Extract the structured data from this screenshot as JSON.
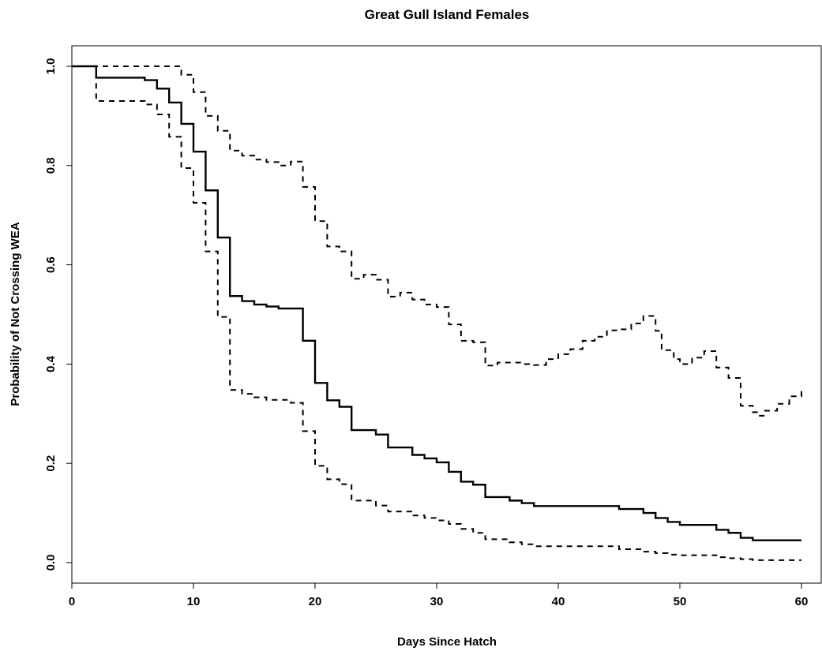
{
  "chart_data": {
    "type": "line",
    "title": "Great Gull Island Females",
    "xlabel": "Days Since Hatch",
    "ylabel": "Probability of Not Crossing WEA",
    "xlim": [
      0,
      60
    ],
    "ylim": [
      0.0,
      1.0
    ],
    "x_ticks": [
      "0",
      "10",
      "20",
      "30",
      "40",
      "50",
      "60"
    ],
    "y_ticks": [
      "0.0",
      "0.2",
      "0.4",
      "0.6",
      "0.8",
      "1.0"
    ],
    "grid": false,
    "legend": "none",
    "step": true,
    "series": [
      {
        "style": "solid",
        "points": [
          [
            0,
            1.0
          ],
          [
            2,
            0.977
          ],
          [
            6,
            0.972
          ],
          [
            7,
            0.955
          ],
          [
            8,
            0.927
          ],
          [
            9,
            0.884
          ],
          [
            10,
            0.828
          ],
          [
            11,
            0.75
          ],
          [
            12,
            0.655
          ],
          [
            13,
            0.537
          ],
          [
            14,
            0.527
          ],
          [
            15,
            0.52
          ],
          [
            16,
            0.516
          ],
          [
            17,
            0.512
          ],
          [
            19,
            0.447
          ],
          [
            20,
            0.362
          ],
          [
            21,
            0.327
          ],
          [
            22,
            0.314
          ],
          [
            23,
            0.267
          ],
          [
            25,
            0.258
          ],
          [
            26,
            0.232
          ],
          [
            28,
            0.217
          ],
          [
            29,
            0.21
          ],
          [
            30,
            0.202
          ],
          [
            31,
            0.183
          ],
          [
            32,
            0.163
          ],
          [
            33,
            0.157
          ],
          [
            34,
            0.132
          ],
          [
            36,
            0.125
          ],
          [
            37,
            0.12
          ],
          [
            38,
            0.114
          ],
          [
            45,
            0.108
          ],
          [
            47,
            0.1
          ],
          [
            48,
            0.09
          ],
          [
            49,
            0.082
          ],
          [
            50,
            0.076
          ],
          [
            53,
            0.066
          ],
          [
            54,
            0.06
          ],
          [
            55,
            0.05
          ],
          [
            56,
            0.045
          ],
          [
            60,
            0.045
          ]
        ]
      },
      {
        "style": "dashed",
        "points": [
          [
            0,
            1.0
          ],
          [
            2,
            0.93
          ],
          [
            6,
            0.923
          ],
          [
            7,
            0.903
          ],
          [
            8,
            0.858
          ],
          [
            9,
            0.795
          ],
          [
            10,
            0.725
          ],
          [
            11,
            0.627
          ],
          [
            12,
            0.495
          ],
          [
            13,
            0.348
          ],
          [
            14,
            0.34
          ],
          [
            15,
            0.333
          ],
          [
            16,
            0.328
          ],
          [
            18,
            0.322
          ],
          [
            19,
            0.265
          ],
          [
            20,
            0.195
          ],
          [
            21,
            0.168
          ],
          [
            22,
            0.158
          ],
          [
            23,
            0.125
          ],
          [
            25,
            0.115
          ],
          [
            26,
            0.103
          ],
          [
            28,
            0.095
          ],
          [
            29,
            0.09
          ],
          [
            30,
            0.085
          ],
          [
            31,
            0.078
          ],
          [
            32,
            0.068
          ],
          [
            33,
            0.06
          ],
          [
            34,
            0.047
          ],
          [
            36,
            0.041
          ],
          [
            37,
            0.037
          ],
          [
            38,
            0.033
          ],
          [
            45,
            0.027
          ],
          [
            47,
            0.022
          ],
          [
            48,
            0.019
          ],
          [
            49,
            0.016
          ],
          [
            50,
            0.015
          ],
          [
            53,
            0.011
          ],
          [
            54,
            0.009
          ],
          [
            55,
            0.007
          ],
          [
            56,
            0.005
          ],
          [
            60,
            0.005
          ]
        ]
      },
      {
        "style": "dashed",
        "points": [
          [
            0,
            1.0
          ],
          [
            2,
            1.0
          ],
          [
            9,
            0.983
          ],
          [
            10,
            0.948
          ],
          [
            11,
            0.9
          ],
          [
            12,
            0.87
          ],
          [
            13,
            0.83
          ],
          [
            14,
            0.82
          ],
          [
            15,
            0.812
          ],
          [
            16,
            0.807
          ],
          [
            17,
            0.8
          ],
          [
            18,
            0.808
          ],
          [
            19,
            0.757
          ],
          [
            20,
            0.688
          ],
          [
            21,
            0.637
          ],
          [
            22,
            0.627
          ],
          [
            23,
            0.572
          ],
          [
            24,
            0.58
          ],
          [
            25,
            0.57
          ],
          [
            26,
            0.536
          ],
          [
            27,
            0.544
          ],
          [
            28,
            0.53
          ],
          [
            29,
            0.52
          ],
          [
            30,
            0.515
          ],
          [
            31,
            0.48
          ],
          [
            32,
            0.447
          ],
          [
            33,
            0.444
          ],
          [
            34,
            0.397
          ],
          [
            35,
            0.403
          ],
          [
            36,
            0.403
          ],
          [
            37,
            0.4
          ],
          [
            38,
            0.398
          ],
          [
            39,
            0.41
          ],
          [
            40,
            0.42
          ],
          [
            41,
            0.43
          ],
          [
            42,
            0.447
          ],
          [
            43,
            0.455
          ],
          [
            44,
            0.468
          ],
          [
            45,
            0.47
          ],
          [
            46,
            0.482
          ],
          [
            47,
            0.497
          ],
          [
            48,
            0.467
          ],
          [
            48.5,
            0.428
          ],
          [
            49,
            0.428
          ],
          [
            49.5,
            0.41
          ],
          [
            50,
            0.4
          ],
          [
            51,
            0.413
          ],
          [
            52,
            0.426
          ],
          [
            53,
            0.393
          ],
          [
            54,
            0.372
          ],
          [
            55,
            0.316
          ],
          [
            56,
            0.303
          ],
          [
            56.5,
            0.296
          ],
          [
            57,
            0.306
          ],
          [
            58,
            0.32
          ],
          [
            59,
            0.335
          ],
          [
            60,
            0.35
          ]
        ]
      }
    ]
  }
}
